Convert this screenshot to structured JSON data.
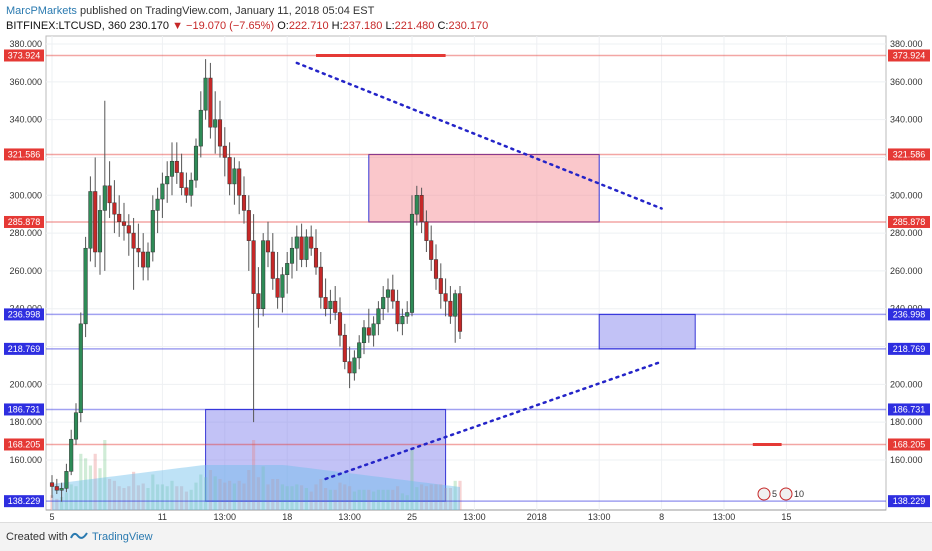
{
  "header": {
    "author": "MarcPMarkets",
    "published_text": "published on TradingView.com, January 11, 2018 05:04 EST"
  },
  "symbol_line": {
    "symbol": "BITFINEX:LTCUSD, 360",
    "last": "230.170",
    "change": "▼ −19.070 (−7.65%)",
    "o_label": "O:",
    "o": "222.710",
    "h_label": "H:",
    "h": "237.180",
    "l_label": "L:",
    "l": "221.480",
    "c_label": "C:",
    "c": "230.170"
  },
  "footer": {
    "created_with": "Created with",
    "brand": "TradingView"
  },
  "chart_data": {
    "type": "candlestick",
    "y_axis_ticks": [
      160,
      180,
      200,
      220,
      240,
      260,
      280,
      300,
      320,
      340,
      360,
      380
    ],
    "y_axis_tick_labels": [
      "160.000",
      "180.000",
      "200.000",
      "220.000",
      "240.000",
      "260.000",
      "280.000",
      "300.000",
      "320.000",
      "340.000",
      "360.000",
      "380.000"
    ],
    "x_axis_ticks": [
      {
        "label": "5",
        "bar": 0
      },
      {
        "label": "11",
        "bar": 23
      },
      {
        "label": "13:00",
        "bar": 36
      },
      {
        "label": "18",
        "bar": 49
      },
      {
        "label": "13:00",
        "bar": 62
      },
      {
        "label": "25",
        "bar": 75
      },
      {
        "label": "13:00",
        "bar": 88
      },
      {
        "label": "2018",
        "bar": 101
      },
      {
        "label": "13:00",
        "bar": 114
      },
      {
        "label": "8",
        "bar": 127
      },
      {
        "label": "13:00",
        "bar": 140
      },
      {
        "label": "15",
        "bar": 153
      }
    ],
    "price_levels": [
      {
        "value": 373.924,
        "label": "373.924",
        "color": "#e53935",
        "kind": "resistance"
      },
      {
        "value": 321.586,
        "label": "321.586",
        "color": "#e53935",
        "kind": "resistance"
      },
      {
        "value": 285.878,
        "label": "285.878",
        "color": "#e53935",
        "kind": "resistance"
      },
      {
        "value": 236.998,
        "label": "236.998",
        "color": "#2e2ee0",
        "kind": "support"
      },
      {
        "value": 218.769,
        "label": "218.769",
        "color": "#2e2ee0",
        "kind": "support"
      },
      {
        "value": 186.731,
        "label": "186.731",
        "color": "#2e2ee0",
        "kind": "support"
      },
      {
        "value": 168.205,
        "label": "168.205",
        "color": "#e53935",
        "kind": "resistance"
      },
      {
        "value": 138.229,
        "label": "138.229",
        "color": "#2e2ee0",
        "kind": "support"
      }
    ],
    "zones": [
      {
        "kind": "supply",
        "bar_from": 66,
        "bar_to": 114,
        "y_top": 321.586,
        "y_bottom": 285.878
      },
      {
        "kind": "demand",
        "bar_from": 114,
        "bar_to": 134,
        "y_top": 236.998,
        "y_bottom": 218.769
      },
      {
        "kind": "demand",
        "bar_from": 32,
        "bar_to": 82,
        "y_top": 186.731,
        "y_bottom": 138.229
      }
    ],
    "trendlines": [
      {
        "from_bar": 51,
        "from_y": 370,
        "to_bar": 127,
        "to_y": 293
      },
      {
        "from_bar": 57,
        "from_y": 150,
        "to_bar": 127,
        "to_y": 212
      }
    ],
    "candles": [
      [
        148,
        152,
        140,
        146
      ],
      [
        146,
        150,
        142,
        144
      ],
      [
        144,
        148,
        138,
        145
      ],
      [
        145,
        158,
        143,
        154
      ],
      [
        154,
        176,
        152,
        171
      ],
      [
        171,
        190,
        168,
        185
      ],
      [
        185,
        238,
        180,
        232
      ],
      [
        232,
        278,
        225,
        272
      ],
      [
        272,
        310,
        265,
        302
      ],
      [
        302,
        320,
        262,
        270
      ],
      [
        270,
        300,
        258,
        292
      ],
      [
        292,
        350,
        260,
        305
      ],
      [
        305,
        318,
        288,
        296
      ],
      [
        296,
        308,
        280,
        290
      ],
      [
        290,
        300,
        278,
        286
      ],
      [
        286,
        296,
        276,
        284
      ],
      [
        284,
        290,
        268,
        280
      ],
      [
        280,
        288,
        250,
        272
      ],
      [
        272,
        285,
        262,
        270
      ],
      [
        270,
        280,
        255,
        262
      ],
      [
        262,
        275,
        255,
        270
      ],
      [
        270,
        300,
        265,
        292
      ],
      [
        292,
        304,
        280,
        298
      ],
      [
        298,
        312,
        288,
        306
      ],
      [
        306,
        318,
        296,
        310
      ],
      [
        310,
        328,
        300,
        318
      ],
      [
        318,
        328,
        306,
        312
      ],
      [
        312,
        322,
        300,
        304
      ],
      [
        304,
        312,
        296,
        300
      ],
      [
        300,
        312,
        294,
        308
      ],
      [
        308,
        330,
        304,
        326
      ],
      [
        326,
        355,
        320,
        345
      ],
      [
        345,
        372,
        340,
        362
      ],
      [
        362,
        370,
        330,
        336
      ],
      [
        336,
        355,
        322,
        340
      ],
      [
        340,
        350,
        320,
        326
      ],
      [
        326,
        336,
        310,
        320
      ],
      [
        320,
        328,
        300,
        306
      ],
      [
        306,
        320,
        295,
        314
      ],
      [
        314,
        318,
        290,
        300
      ],
      [
        300,
        310,
        285,
        292
      ],
      [
        292,
        300,
        260,
        276
      ],
      [
        276,
        290,
        180,
        248
      ],
      [
        248,
        262,
        230,
        240
      ],
      [
        240,
        280,
        236,
        276
      ],
      [
        276,
        286,
        262,
        270
      ],
      [
        270,
        280,
        250,
        256
      ],
      [
        256,
        270,
        240,
        246
      ],
      [
        246,
        262,
        238,
        258
      ],
      [
        258,
        270,
        248,
        264
      ],
      [
        264,
        278,
        256,
        272
      ],
      [
        272,
        284,
        260,
        278
      ],
      [
        278,
        285,
        262,
        266
      ],
      [
        266,
        282,
        262,
        278
      ],
      [
        278,
        284,
        268,
        272
      ],
      [
        272,
        282,
        258,
        262
      ],
      [
        262,
        270,
        240,
        246
      ],
      [
        246,
        256,
        236,
        240
      ],
      [
        240,
        250,
        232,
        244
      ],
      [
        244,
        252,
        234,
        238
      ],
      [
        238,
        246,
        220,
        226
      ],
      [
        226,
        232,
        208,
        212
      ],
      [
        212,
        220,
        198,
        206
      ],
      [
        206,
        218,
        202,
        214
      ],
      [
        214,
        226,
        208,
        222
      ],
      [
        222,
        234,
        216,
        230
      ],
      [
        230,
        240,
        222,
        226
      ],
      [
        226,
        236,
        220,
        232
      ],
      [
        232,
        244,
        226,
        240
      ],
      [
        240,
        252,
        234,
        246
      ],
      [
        246,
        256,
        238,
        250
      ],
      [
        250,
        258,
        240,
        244
      ],
      [
        244,
        250,
        228,
        232
      ],
      [
        232,
        240,
        226,
        236
      ],
      [
        236,
        244,
        232,
        238
      ],
      [
        238,
        300,
        236,
        290
      ],
      [
        290,
        305,
        284,
        300
      ],
      [
        300,
        304,
        280,
        286
      ],
      [
        286,
        292,
        270,
        276
      ],
      [
        276,
        284,
        260,
        266
      ],
      [
        266,
        274,
        250,
        256
      ],
      [
        256,
        264,
        240,
        248
      ],
      [
        248,
        256,
        236,
        244
      ],
      [
        244,
        252,
        232,
        236
      ],
      [
        236,
        250,
        222,
        248
      ],
      [
        248,
        252,
        224,
        228
      ]
    ],
    "volume_hint": "volume histogram with moving-average area at bottom of pane",
    "event_badges": [
      "5",
      "10"
    ]
  }
}
